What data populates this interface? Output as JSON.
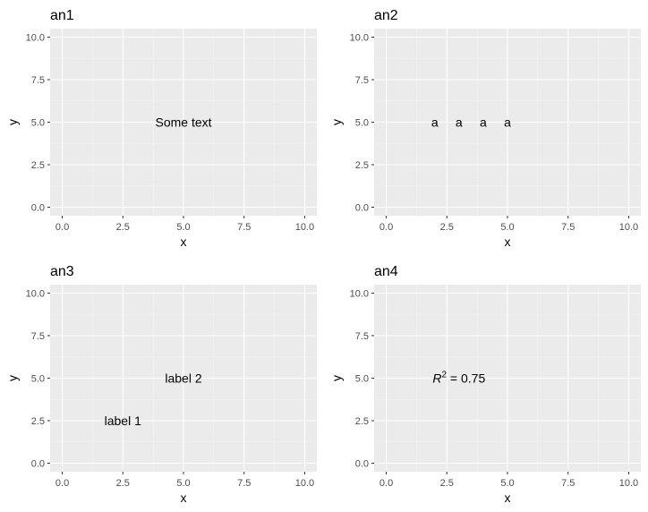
{
  "chart_data": [
    {
      "type": "scatter",
      "title": "an1",
      "xlabel": "x",
      "ylabel": "y",
      "xlim": [
        -0.5,
        10.5
      ],
      "ylim": [
        -0.5,
        10.5
      ],
      "xticks": [
        "0.0",
        "2.5",
        "5.0",
        "7.5",
        "10.0"
      ],
      "yticks": [
        "0.0",
        "2.5",
        "5.0",
        "7.5",
        "10.0"
      ],
      "grid": true,
      "annotations": [
        {
          "x": 5,
          "y": 5,
          "text": "Some text"
        }
      ]
    },
    {
      "type": "scatter",
      "title": "an2",
      "xlabel": "x",
      "ylabel": "y",
      "xlim": [
        -0.5,
        10.5
      ],
      "ylim": [
        -0.5,
        10.5
      ],
      "xticks": [
        "0.0",
        "2.5",
        "5.0",
        "7.5",
        "10.0"
      ],
      "yticks": [
        "0.0",
        "2.5",
        "5.0",
        "7.5",
        "10.0"
      ],
      "grid": true,
      "annotations": [
        {
          "x": 2,
          "y": 5,
          "text": "a"
        },
        {
          "x": 3,
          "y": 5,
          "text": "a"
        },
        {
          "x": 4,
          "y": 5,
          "text": "a"
        },
        {
          "x": 5,
          "y": 5,
          "text": "a"
        }
      ]
    },
    {
      "type": "scatter",
      "title": "an3",
      "xlabel": "x",
      "ylabel": "y",
      "xlim": [
        -0.5,
        10.5
      ],
      "ylim": [
        -0.5,
        10.5
      ],
      "xticks": [
        "0.0",
        "2.5",
        "5.0",
        "7.5",
        "10.0"
      ],
      "yticks": [
        "0.0",
        "2.5",
        "5.0",
        "7.5",
        "10.0"
      ],
      "grid": true,
      "annotations": [
        {
          "x": 2.5,
          "y": 2.5,
          "text": "label 1"
        },
        {
          "x": 5,
          "y": 5,
          "text": "label 2"
        }
      ]
    },
    {
      "type": "scatter",
      "title": "an4",
      "xlabel": "x",
      "ylabel": "y",
      "xlim": [
        -0.5,
        10.5
      ],
      "ylim": [
        -0.5,
        10.5
      ],
      "xticks": [
        "0.0",
        "2.5",
        "5.0",
        "7.5",
        "10.0"
      ],
      "yticks": [
        "0.0",
        "2.5",
        "5.0",
        "7.5",
        "10.0"
      ],
      "grid": true,
      "annotations": [
        {
          "x": 3,
          "y": 5,
          "text": "R",
          "sup": "2",
          "rest": " = 0.75"
        }
      ]
    }
  ],
  "colors": {
    "panel_background": "#ebebeb",
    "grid_major": "#ffffff",
    "grid_minor": "#f5f5f5",
    "tick_label": "#4d4d4d",
    "text": "#000000"
  }
}
